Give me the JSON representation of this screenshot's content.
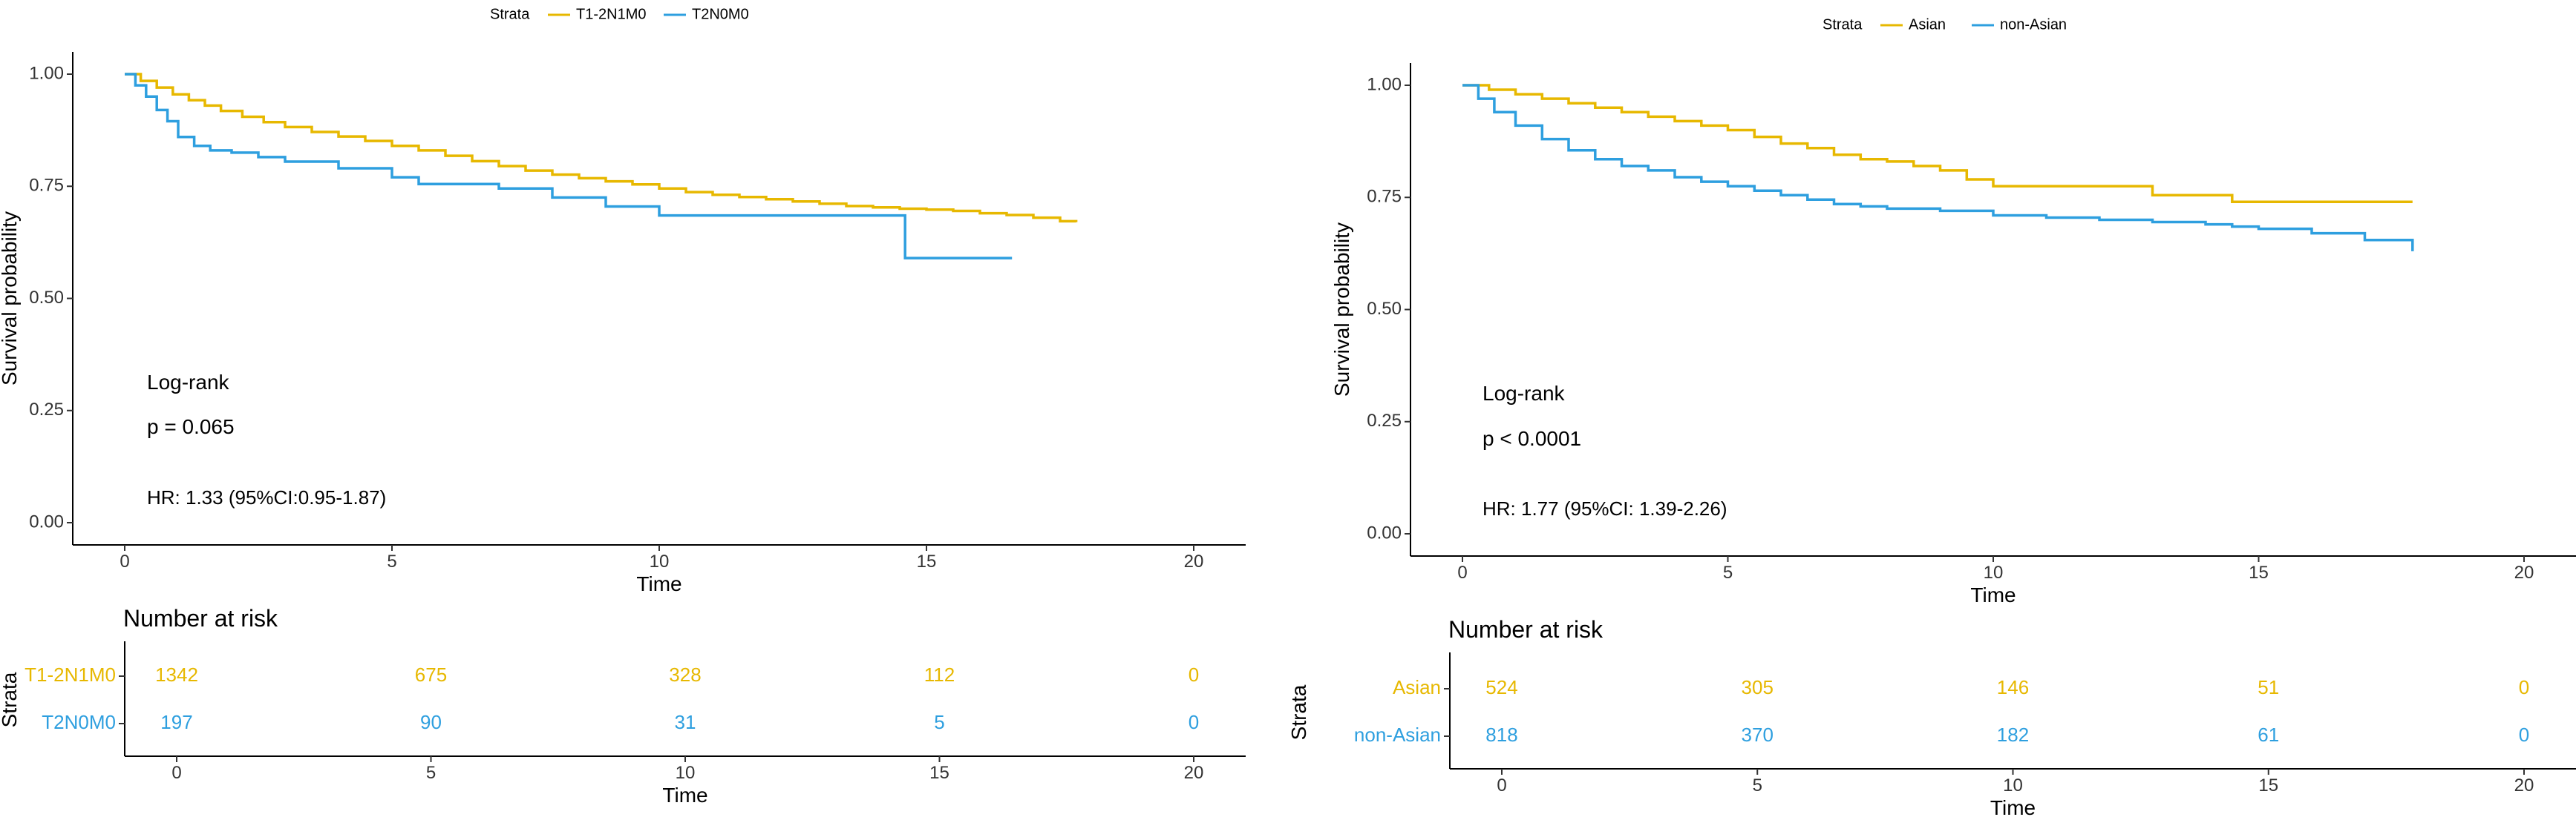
{
  "chart_data": [
    {
      "type": "line",
      "subtype": "kaplan-meier",
      "legend_title": "Strata",
      "legend_position": "top",
      "xlabel": "Time",
      "ylabel": "Survival probability",
      "xlim": [
        0,
        20
      ],
      "ylim": [
        0,
        1
      ],
      "x_ticks": [
        0,
        5,
        10,
        15,
        20
      ],
      "y_ticks": [
        0.0,
        0.25,
        0.5,
        0.75,
        1.0
      ],
      "y_tick_labels": [
        "0.00",
        "0.25",
        "0.50",
        "0.75",
        "1.00"
      ],
      "grid": false,
      "annotations": {
        "test": "Log-rank",
        "p": "p = 0.065",
        "hr": "HR: 1.33 (95%CI:0.95-1.87)"
      },
      "series": [
        {
          "name": "T1-2N1M0",
          "color": "#E7B800",
          "x": [
            0,
            0.3,
            0.6,
            0.9,
            1.2,
            1.5,
            1.8,
            2.2,
            2.6,
            3.0,
            3.5,
            4.0,
            4.5,
            5.0,
            5.5,
            6.0,
            6.5,
            7.0,
            7.5,
            8.0,
            8.5,
            9.0,
            9.5,
            10.0,
            10.5,
            11.0,
            11.5,
            12.0,
            12.5,
            13.0,
            13.5,
            14.0,
            14.5,
            15.0,
            15.5,
            16.0,
            16.5,
            17.0,
            17.5,
            17.8
          ],
          "y": [
            1.0,
            0.985,
            0.97,
            0.955,
            0.942,
            0.93,
            0.918,
            0.905,
            0.893,
            0.882,
            0.871,
            0.861,
            0.851,
            0.84,
            0.83,
            0.818,
            0.806,
            0.795,
            0.785,
            0.776,
            0.768,
            0.761,
            0.754,
            0.745,
            0.737,
            0.731,
            0.726,
            0.721,
            0.716,
            0.711,
            0.706,
            0.703,
            0.7,
            0.698,
            0.695,
            0.69,
            0.686,
            0.68,
            0.672,
            0.67
          ]
        },
        {
          "name": "T2N0M0",
          "color": "#2E9FDF",
          "x": [
            0,
            0.2,
            0.4,
            0.6,
            0.8,
            1.0,
            1.3,
            1.6,
            2.0,
            2.5,
            3.0,
            4.0,
            5.0,
            5.5,
            7.0,
            8.0,
            9.0,
            10.0,
            11.0,
            13.0,
            14.6,
            16.6
          ],
          "y": [
            1.0,
            0.975,
            0.95,
            0.92,
            0.895,
            0.86,
            0.84,
            0.83,
            0.825,
            0.815,
            0.805,
            0.79,
            0.77,
            0.755,
            0.745,
            0.725,
            0.705,
            0.685,
            0.685,
            0.685,
            0.59,
            0.59
          ]
        }
      ],
      "risk_table": {
        "title": "Number at risk",
        "ylabel": "Strata",
        "xlabel": "Time",
        "times": [
          0,
          5,
          10,
          15,
          20
        ],
        "rows": [
          {
            "name": "T1-2N1M0",
            "values": [
              1342,
              675,
              328,
              112,
              0
            ],
            "color": "#E7B800"
          },
          {
            "name": "T2N0M0",
            "values": [
              197,
              90,
              31,
              5,
              0
            ],
            "color": "#2E9FDF"
          }
        ]
      }
    },
    {
      "type": "line",
      "subtype": "kaplan-meier",
      "legend_title": "Strata",
      "legend_position": "top",
      "xlabel": "Time",
      "ylabel": "Survival probability",
      "xlim": [
        0,
        20
      ],
      "ylim": [
        0,
        1
      ],
      "x_ticks": [
        0,
        5,
        10,
        15,
        20
      ],
      "y_ticks": [
        0.0,
        0.25,
        0.5,
        0.75,
        1.0
      ],
      "y_tick_labels": [
        "0.00",
        "0.25",
        "0.50",
        "0.75",
        "1.00"
      ],
      "grid": false,
      "annotations": {
        "test": "Log-rank",
        "p": "p < 0.0001",
        "hr": "HR:  1.77 (95%CI: 1.39-2.26)"
      },
      "series": [
        {
          "name": "Asian",
          "color": "#E7B800",
          "x": [
            0,
            0.5,
            1.0,
            1.5,
            2.0,
            2.5,
            3.0,
            3.5,
            4.0,
            4.5,
            5.0,
            5.5,
            6.0,
            6.5,
            7.0,
            7.5,
            8.0,
            8.5,
            9.0,
            9.5,
            10.0,
            11.0,
            12.0,
            13.0,
            14.0,
            14.5,
            16.0,
            17.9
          ],
          "y": [
            1.0,
            0.99,
            0.98,
            0.97,
            0.96,
            0.95,
            0.94,
            0.93,
            0.92,
            0.91,
            0.9,
            0.885,
            0.87,
            0.86,
            0.845,
            0.835,
            0.83,
            0.82,
            0.81,
            0.79,
            0.775,
            0.775,
            0.775,
            0.755,
            0.755,
            0.74,
            0.74,
            0.74
          ]
        },
        {
          "name": "non-Asian",
          "color": "#2E9FDF",
          "x": [
            0,
            0.3,
            0.6,
            1.0,
            1.5,
            2.0,
            2.5,
            3.0,
            3.5,
            4.0,
            4.5,
            5.0,
            5.5,
            6.0,
            6.5,
            7.0,
            7.5,
            8.0,
            9.0,
            10.0,
            11.0,
            12.0,
            13.0,
            14.0,
            14.5,
            15.0,
            16.0,
            17.0,
            17.9
          ],
          "y": [
            1.0,
            0.97,
            0.94,
            0.91,
            0.88,
            0.855,
            0.835,
            0.82,
            0.81,
            0.795,
            0.785,
            0.775,
            0.765,
            0.755,
            0.745,
            0.735,
            0.73,
            0.725,
            0.72,
            0.71,
            0.705,
            0.7,
            0.695,
            0.69,
            0.685,
            0.68,
            0.67,
            0.655,
            0.63
          ]
        }
      ],
      "risk_table": {
        "title": "Number at risk",
        "ylabel": "Strata",
        "xlabel": "Time",
        "times": [
          0,
          5,
          10,
          15,
          20
        ],
        "rows": [
          {
            "name": "Asian",
            "values": [
              524,
              305,
              146,
              51,
              0
            ],
            "color": "#E7B800"
          },
          {
            "name": "non-Asian",
            "values": [
              818,
              370,
              182,
              61,
              0
            ],
            "color": "#2E9FDF"
          }
        ]
      }
    }
  ]
}
